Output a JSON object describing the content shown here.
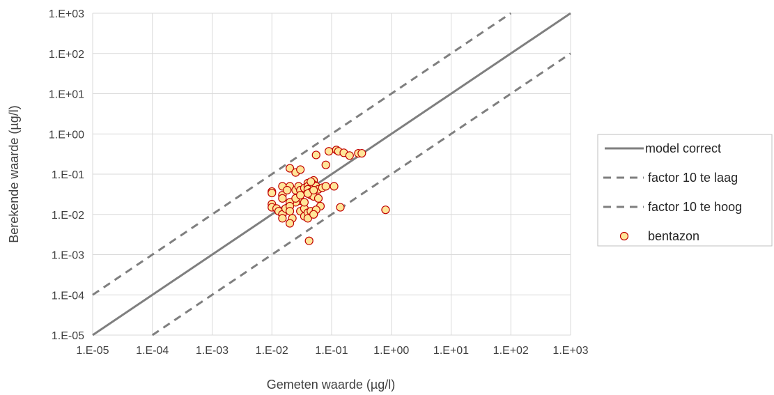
{
  "chart_data": {
    "type": "scatter",
    "title": "",
    "xlabel": "Gemeten waarde (µg/l)",
    "ylabel": "Berekende waarde (µg/l)",
    "x_scale": "log",
    "y_scale": "log",
    "xlim": [
      1e-05,
      1000
    ],
    "ylim": [
      1e-05,
      1000
    ],
    "grid": true,
    "legend_position": "right",
    "x_ticks": [
      "1.E-05",
      "1.E-04",
      "1.E-03",
      "1.E-02",
      "1.E-01",
      "1.E+00",
      "1.E+01",
      "1.E+02",
      "1.E+03"
    ],
    "y_ticks": [
      "1.E-05",
      "1.E-04",
      "1.E-03",
      "1.E-02",
      "1.E-01",
      "1.E+00",
      "1.E+01",
      "1.E+02",
      "1.E+03"
    ],
    "reference_lines": [
      {
        "name": "model correct",
        "style": "solid",
        "color": "#7f7f7f",
        "factor": 1
      },
      {
        "name": "factor 10 te laag",
        "style": "dashed",
        "color": "#7f7f7f",
        "factor": 10
      },
      {
        "name": "factor 10 te hoog",
        "style": "dashed",
        "color": "#7f7f7f",
        "factor": 0.1
      }
    ],
    "series": [
      {
        "name": "bentazon",
        "marker_fill": "#ffe699",
        "marker_stroke": "#c00000",
        "points": [
          [
            0.12,
            0.4
          ],
          [
            0.13,
            0.37
          ],
          [
            0.16,
            0.34
          ],
          [
            0.09,
            0.37
          ],
          [
            0.2,
            0.29
          ],
          [
            0.28,
            0.33
          ],
          [
            0.32,
            0.33
          ],
          [
            0.055,
            0.3
          ],
          [
            0.08,
            0.17
          ],
          [
            0.02,
            0.14
          ],
          [
            0.025,
            0.11
          ],
          [
            0.03,
            0.13
          ],
          [
            0.01,
            0.037
          ],
          [
            0.01,
            0.034
          ],
          [
            0.015,
            0.05
          ],
          [
            0.02,
            0.05
          ],
          [
            0.025,
            0.04
          ],
          [
            0.028,
            0.05
          ],
          [
            0.03,
            0.04
          ],
          [
            0.035,
            0.045
          ],
          [
            0.04,
            0.06
          ],
          [
            0.04,
            0.05
          ],
          [
            0.04,
            0.042
          ],
          [
            0.045,
            0.036
          ],
          [
            0.05,
            0.07
          ],
          [
            0.05,
            0.055
          ],
          [
            0.055,
            0.05
          ],
          [
            0.06,
            0.042
          ],
          [
            0.07,
            0.046
          ],
          [
            0.08,
            0.05
          ],
          [
            0.11,
            0.05
          ],
          [
            0.045,
            0.03
          ],
          [
            0.05,
            0.028
          ],
          [
            0.06,
            0.025
          ],
          [
            0.065,
            0.016
          ],
          [
            0.03,
            0.022
          ],
          [
            0.025,
            0.02
          ],
          [
            0.02,
            0.02
          ],
          [
            0.015,
            0.03
          ],
          [
            0.015,
            0.025
          ],
          [
            0.01,
            0.018
          ],
          [
            0.01,
            0.015
          ],
          [
            0.012,
            0.014
          ],
          [
            0.013,
            0.012
          ],
          [
            0.015,
            0.01
          ],
          [
            0.017,
            0.014
          ],
          [
            0.02,
            0.016
          ],
          [
            0.02,
            0.012
          ],
          [
            0.022,
            0.008
          ],
          [
            0.02,
            0.006
          ],
          [
            0.03,
            0.012
          ],
          [
            0.035,
            0.014
          ],
          [
            0.035,
            0.009
          ],
          [
            0.04,
            0.011
          ],
          [
            0.04,
            0.008
          ],
          [
            0.045,
            0.012
          ],
          [
            0.055,
            0.013
          ],
          [
            0.05,
            0.01
          ],
          [
            0.015,
            0.008
          ],
          [
            0.025,
            0.025
          ],
          [
            0.04,
            0.033
          ],
          [
            0.035,
            0.02
          ],
          [
            0.03,
            0.03
          ],
          [
            0.018,
            0.04
          ],
          [
            0.045,
            0.065
          ],
          [
            0.05,
            0.04
          ],
          [
            0.042,
            0.0022
          ],
          [
            0.14,
            0.015
          ],
          [
            0.8,
            0.013
          ]
        ]
      }
    ]
  }
}
